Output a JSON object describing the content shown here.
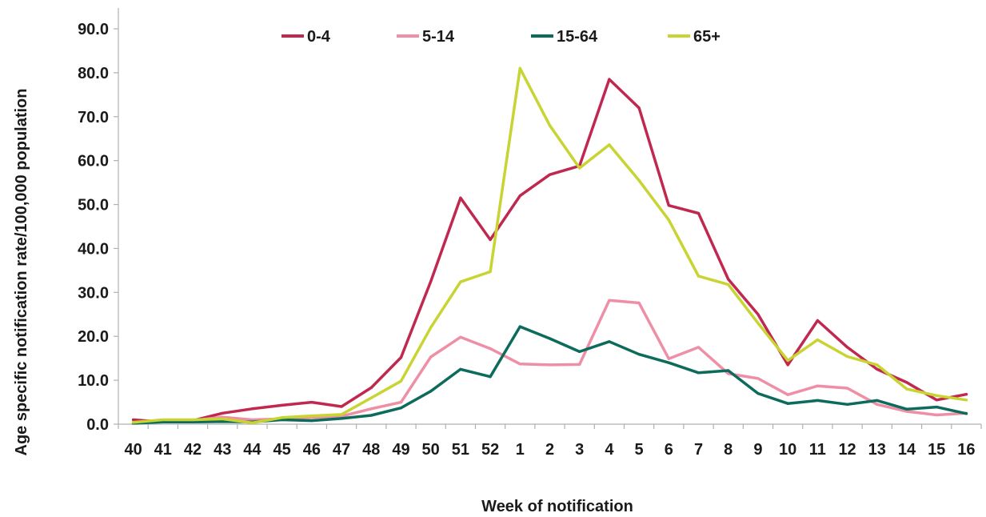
{
  "chart_data": {
    "type": "line",
    "title": "",
    "xlabel": "Week of notification",
    "ylabel": "Age  specific notification  rate/100,000 population",
    "ylim": [
      0,
      90
    ],
    "yticks": [
      "0.0",
      "10.0",
      "20.0",
      "30.0",
      "40.0",
      "50.0",
      "60.0",
      "70.0",
      "80.0",
      "90.0"
    ],
    "grid": false,
    "legend_position": "top",
    "categories": [
      "40",
      "41",
      "42",
      "43",
      "44",
      "45",
      "46",
      "47",
      "48",
      "49",
      "50",
      "51",
      "52",
      "1",
      "2",
      "3",
      "4",
      "5",
      "6",
      "7",
      "8",
      "9",
      "10",
      "11",
      "12",
      "13",
      "14",
      "15",
      "16"
    ],
    "series": [
      {
        "name": "0-4",
        "color": "#c0284f",
        "values": [
          1.0,
          0.5,
          0.8,
          2.5,
          3.5,
          4.3,
          5.0,
          4.0,
          8.3,
          15.2,
          32.5,
          51.5,
          42.0,
          52.0,
          56.8,
          58.8,
          78.5,
          72.0,
          49.8,
          48.0,
          33.0,
          25.0,
          13.5,
          23.6,
          17.5,
          12.5,
          9.5,
          5.5,
          6.8
        ]
      },
      {
        "name": "5-14",
        "color": "#ee8fa6",
        "values": [
          0.3,
          0.6,
          0.8,
          1.6,
          1.0,
          1.2,
          1.5,
          1.8,
          3.5,
          5.0,
          15.3,
          19.8,
          17.2,
          13.7,
          13.5,
          13.6,
          28.2,
          27.6,
          14.9,
          17.5,
          11.5,
          10.4,
          6.7,
          8.7,
          8.2,
          4.5,
          2.9,
          2.1,
          2.5
        ]
      },
      {
        "name": "15-64",
        "color": "#0d6b5c",
        "values": [
          0.2,
          0.5,
          0.5,
          0.6,
          0.5,
          1.0,
          0.8,
          1.3,
          2.0,
          3.7,
          7.5,
          12.5,
          10.8,
          22.2,
          19.5,
          16.5,
          18.8,
          15.9,
          14.0,
          11.7,
          12.2,
          7.0,
          4.7,
          5.4,
          4.5,
          5.4,
          3.4,
          3.9,
          2.4
        ]
      },
      {
        "name": "65+",
        "color": "#c8d431",
        "values": [
          0.4,
          1.0,
          1.0,
          1.2,
          0.3,
          1.5,
          1.9,
          2.2,
          6.0,
          9.8,
          22.0,
          32.4,
          34.7,
          81.0,
          68.0,
          58.3,
          63.6,
          55.5,
          46.5,
          33.7,
          31.8,
          23.0,
          14.5,
          19.2,
          15.4,
          13.5,
          8.0,
          6.5,
          5.5
        ]
      }
    ]
  }
}
